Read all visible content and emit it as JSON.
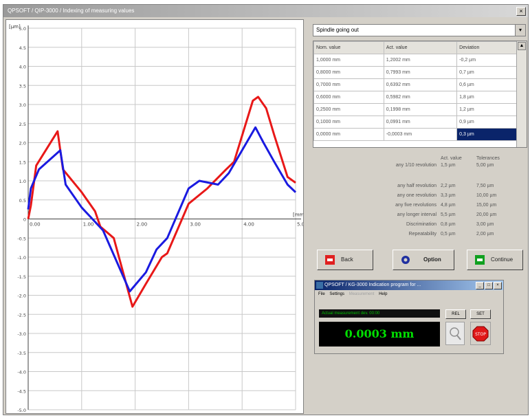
{
  "window": {
    "title": "QPSOFT / QIP-3000 / Indexing of measuring values"
  },
  "chart_data": {
    "type": "line",
    "xlabel": "[mm]",
    "ylabel": "[µm]",
    "xlim": [
      0,
      5
    ],
    "ylim": [
      -5.0,
      5.0
    ],
    "x_ticks": [
      "0.00",
      "1.00",
      "2.00",
      "3.00",
      "4.00",
      "5.00"
    ],
    "y_ticks": [
      "5.0",
      "4.5",
      "4.0",
      "3.5",
      "3.0",
      "2.5",
      "2.0",
      "1.5",
      "1.0",
      "0.5",
      "0",
      "-0.5",
      "-1.0",
      "-1.5",
      "-2.0",
      "-2.5",
      "-3.0",
      "-3.5",
      "-4.0",
      "-4.5",
      "-5.0"
    ],
    "grid": true,
    "series": [
      {
        "color": "#e81818",
        "x": [
          0.0,
          0.05,
          0.15,
          0.55,
          0.65,
          1.0,
          1.25,
          1.35,
          1.6,
          1.95,
          2.2,
          2.5,
          2.6,
          3.0,
          3.35,
          3.7,
          3.85,
          4.2,
          4.3,
          4.45,
          4.6,
          4.85,
          5.0
        ],
        "y": [
          0.0,
          0.35,
          1.4,
          2.3,
          1.3,
          0.7,
          0.2,
          -0.2,
          -0.5,
          -2.3,
          -1.7,
          -1.0,
          -0.9,
          0.4,
          0.8,
          1.3,
          1.5,
          3.1,
          3.2,
          2.9,
          2.2,
          1.1,
          0.95
        ]
      },
      {
        "color": "#1a1ae0",
        "x": [
          0.0,
          0.05,
          0.2,
          0.6,
          0.7,
          1.0,
          1.4,
          1.9,
          2.2,
          2.4,
          2.6,
          3.0,
          3.2,
          3.55,
          3.75,
          4.25,
          4.4,
          4.6,
          4.85,
          5.0
        ],
        "y": [
          0.25,
          0.8,
          1.3,
          1.8,
          0.9,
          0.3,
          -0.3,
          -1.9,
          -1.4,
          -0.8,
          -0.5,
          0.8,
          1.0,
          0.9,
          1.2,
          2.4,
          2.0,
          1.5,
          0.9,
          0.7
        ]
      }
    ]
  },
  "dropdown": {
    "value": "Spindle going out"
  },
  "table": {
    "headers": [
      "Nom. value",
      "Act. value",
      "Deviation"
    ],
    "rows": [
      [
        "1,0000 mm",
        "1,2002 mm",
        "-0,2 µm"
      ],
      [
        "0,8000 mm",
        "0,7993 mm",
        "0,7 µm"
      ],
      [
        "0,7000 mm",
        "0,6392 mm",
        "0,6 µm"
      ],
      [
        "0,6000 mm",
        "0,5982 mm",
        "1,8 µm"
      ],
      [
        "0,2500 mm",
        "0,1998 mm",
        "1,2 µm"
      ],
      [
        "0,1000 mm",
        "0,0991 mm",
        "0,9 µm"
      ],
      [
        "0,0000 mm",
        "-0,0003 mm",
        "0,3 µm"
      ]
    ]
  },
  "stats": {
    "act_header": "Act. value",
    "tol_header": "Tolerances",
    "rows": [
      {
        "label": "any 1/10 revolution",
        "act": "1,5 µm",
        "tol": "5,00 µm"
      },
      {
        "label": "any half revolution",
        "act": "2,2 µm",
        "tol": "7,50 µm"
      },
      {
        "label": "any one revolution",
        "act": "3,3 µm",
        "tol": "10,00 µm"
      },
      {
        "label": "any five revolutions",
        "act": "4,8 µm",
        "tol": "15,00 µm"
      },
      {
        "label": "any longer interval",
        "act": "5,5 µm",
        "tol": "20,00 µm"
      },
      {
        "label": "Discrimination",
        "act": "0,8 µm",
        "tol": "3,00 µm"
      },
      {
        "label": "Repeatability",
        "act": "0,5 µm",
        "tol": "2,00 µm"
      }
    ]
  },
  "buttons": {
    "back": "Back",
    "options": "Option",
    "continue": "Continue"
  },
  "subwindow": {
    "title": "QPSOFT / KG-3000 Indication program for ...",
    "menu": [
      "File",
      "Settings",
      "Measurement",
      "Help"
    ],
    "reference": "Actual measurement dev. 00:00",
    "display_value": "0.0003 mm",
    "btn_a": "REL",
    "btn_b": "SET",
    "stop": "STOP"
  },
  "colors": {
    "series_red": "#e81818",
    "series_blue": "#1a1ae0",
    "selection": "#0a246a",
    "lcd_green": "#00e000"
  }
}
